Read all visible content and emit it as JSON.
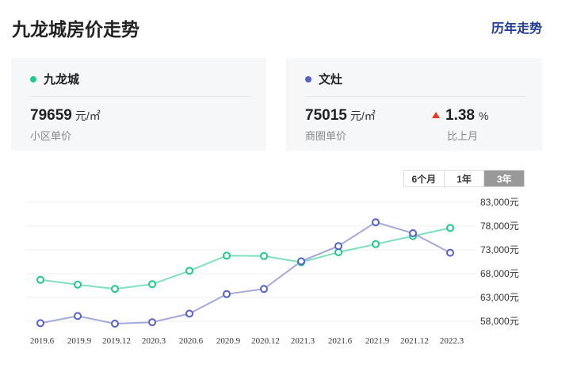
{
  "header": {
    "title": "九龙城房价走势",
    "history_link": "历年走势"
  },
  "cards": {
    "community": {
      "name": "九龙城",
      "dot_color": "#1fc98a",
      "price": "79659",
      "unit": "元/㎡",
      "label": "小区单价"
    },
    "district": {
      "name": "文灶",
      "dot_color": "#5560c8",
      "price": "75015",
      "unit": "元/㎡",
      "label": "商圈单价",
      "change_icon": "up-triangle-icon",
      "change_color": "#e8381f",
      "change": "1.38",
      "change_unit": "%",
      "change_label": "比上月"
    }
  },
  "range_tabs": [
    {
      "label": "6个月",
      "active": false
    },
    {
      "label": "1年",
      "active": false
    },
    {
      "label": "3年",
      "active": true
    }
  ],
  "chart_data": {
    "type": "line",
    "title": "",
    "xlabel": "",
    "ylabel": "",
    "x": [
      "2019.6",
      "2019.9",
      "2019.12",
      "2020.3",
      "2020.6",
      "2020.9",
      "2020.12",
      "2021.3",
      "2021.6",
      "2021.9",
      "2021.12",
      "2022.3"
    ],
    "yticks": [
      "83,000元",
      "78,000元",
      "73,000元",
      "68,000元",
      "63,000元",
      "58,000元"
    ],
    "ylim": [
      58000,
      83000
    ],
    "grid": true,
    "series": [
      {
        "key": "community",
        "color": "#7ee0bd",
        "marker_color": "#1fc98a",
        "values": [
          66700,
          65700,
          64800,
          65800,
          68600,
          71800,
          71700,
          70400,
          72500,
          74200,
          75900,
          77600
        ]
      },
      {
        "key": "district",
        "color": "#a4a9da",
        "marker_color": "#5560c8",
        "values": [
          57600,
          59100,
          57500,
          57800,
          59600,
          63700,
          64800,
          70600,
          73800,
          78800,
          76500,
          72400
        ]
      }
    ]
  }
}
